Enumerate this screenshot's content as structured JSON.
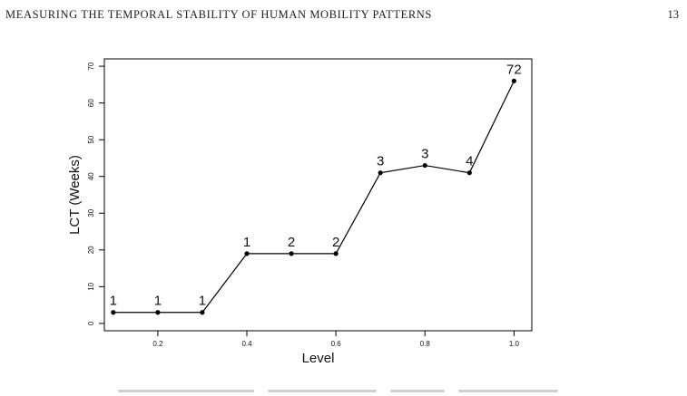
{
  "page": {
    "running_head": "MEASURING THE TEMPORAL STABILITY OF HUMAN MOBILITY PATTERNS",
    "page_number": "13"
  },
  "chart_data": {
    "type": "line",
    "xlabel": "Level",
    "ylabel": "LCT (Weeks)",
    "x": [
      0.1,
      0.2,
      0.3,
      0.4,
      0.5,
      0.6,
      0.7,
      0.8,
      0.9,
      1.0
    ],
    "series": [
      {
        "values": [
          3,
          3,
          3,
          19,
          19,
          19,
          41,
          43,
          41,
          66
        ]
      }
    ],
    "point_labels": [
      "1",
      "1",
      "1",
      "1",
      "2",
      "2",
      "3",
      "3",
      "4",
      "72"
    ],
    "xticks": [
      "0.2",
      "0.4",
      "0.6",
      "0.8",
      "1.0"
    ],
    "yticks": [
      "0",
      "10",
      "20",
      "30",
      "40",
      "50",
      "60",
      "70"
    ],
    "xlim": [
      0.08,
      1.04
    ],
    "ylim": [
      -2,
      72
    ],
    "grid": false,
    "legend": false
  }
}
